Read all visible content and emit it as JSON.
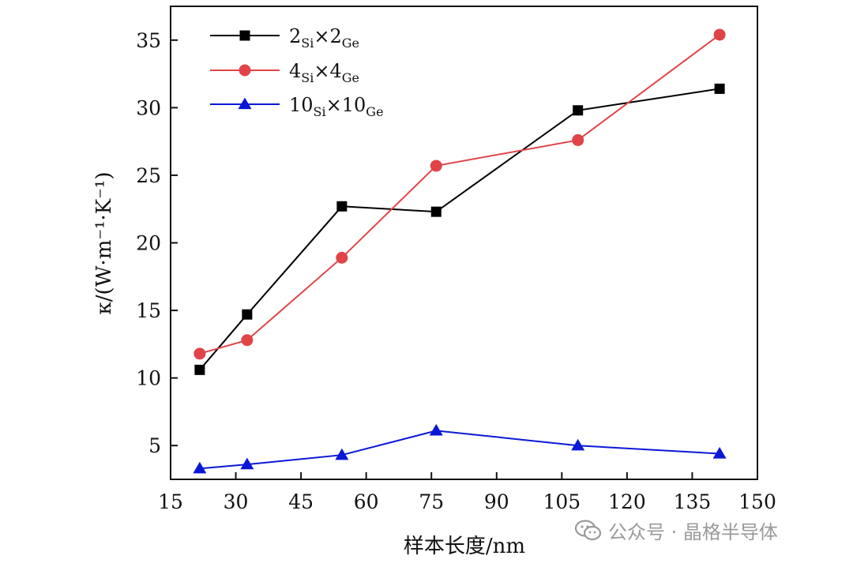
{
  "chart_data": {
    "type": "line",
    "xlabel": "样本长度/nm",
    "ylabel": "κ/(W·m⁻¹·K⁻¹)",
    "xlim": [
      15,
      150
    ],
    "ylim": [
      2.5,
      37.5
    ],
    "xticks": [
      15,
      30,
      45,
      60,
      75,
      90,
      105,
      120,
      135,
      150
    ],
    "yticks": [
      5,
      10,
      15,
      20,
      25,
      30,
      35
    ],
    "grid": false,
    "legend_position": "top-left",
    "x": [
      21.7,
      32.6,
      54.4,
      76.1,
      108.7,
      141.3
    ],
    "series": [
      {
        "name": "2Si×2Ge",
        "label_main1": "2",
        "label_sub1": "Si",
        "label_mid": "×2",
        "label_sub2": "Ge",
        "color": "#000000",
        "marker": "square",
        "values": [
          10.6,
          14.7,
          22.7,
          22.3,
          29.8,
          31.4
        ]
      },
      {
        "name": "4Si×4Ge",
        "label_main1": "4",
        "label_sub1": "Si",
        "label_mid": "×4",
        "label_sub2": "Ge",
        "color": "#e04448",
        "marker": "circle",
        "values": [
          11.8,
          12.8,
          18.9,
          25.7,
          27.6,
          35.4
        ]
      },
      {
        "name": "10Si×10Ge",
        "label_main1": "10",
        "label_sub1": "Si",
        "label_mid": "×10",
        "label_sub2": "Ge",
        "color": "#0a18d6",
        "marker": "triangle",
        "values": [
          3.3,
          3.6,
          4.3,
          6.1,
          5.0,
          4.4
        ]
      }
    ]
  },
  "watermark": {
    "text": "公众号 · 晶格半导体",
    "icon": "wechat-icon"
  }
}
